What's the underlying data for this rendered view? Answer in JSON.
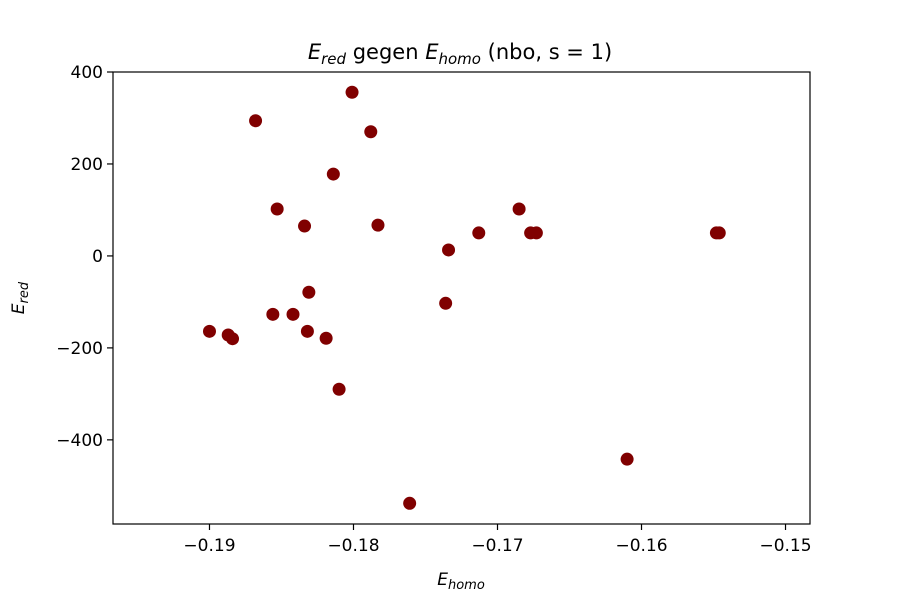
{
  "chart_data": {
    "type": "scatter",
    "title": {
      "pre_sym": "E",
      "pre_sub": "red",
      "middle": " gegen ",
      "post_sym": "E",
      "post_sub": "homo",
      "suffix": " (nbo, s = 1)"
    },
    "xlabel": {
      "sym": "E",
      "sub": "homo"
    },
    "ylabel": {
      "sym": "E",
      "sub": "red"
    },
    "xlim": [
      -0.1967,
      -0.1483
    ],
    "ylim": [
      -583,
      400
    ],
    "xticks": [
      -0.19,
      -0.18,
      -0.17,
      -0.16,
      -0.15
    ],
    "xtick_labels": [
      "−0.19",
      "−0.18",
      "−0.17",
      "−0.16",
      "−0.15"
    ],
    "yticks": [
      400,
      200,
      0,
      -200,
      -400
    ],
    "ytick_labels": [
      "400",
      "200",
      "0",
      "−200",
      "−400"
    ],
    "grid": false,
    "legend": "none",
    "marker_color": "#800000",
    "x": [
      -0.1801,
      -0.1868,
      -0.1788,
      -0.1814,
      -0.1853,
      -0.1834,
      -0.1783,
      -0.1734,
      -0.1713,
      -0.1685,
      -0.1677,
      -0.1673,
      -0.1548,
      -0.1546,
      -0.1831,
      -0.1736,
      -0.1856,
      -0.1842,
      -0.1832,
      -0.1819,
      -0.19,
      -0.1887,
      -0.1884,
      -0.181,
      -0.161,
      -0.1761
    ],
    "y": [
      356,
      294,
      270,
      178,
      102,
      65,
      67,
      13,
      50,
      102,
      50,
      50,
      50,
      50,
      -79,
      -103,
      -127,
      -127,
      -164,
      -179,
      -164,
      -172,
      -180,
      -290,
      -442,
      -538
    ]
  }
}
